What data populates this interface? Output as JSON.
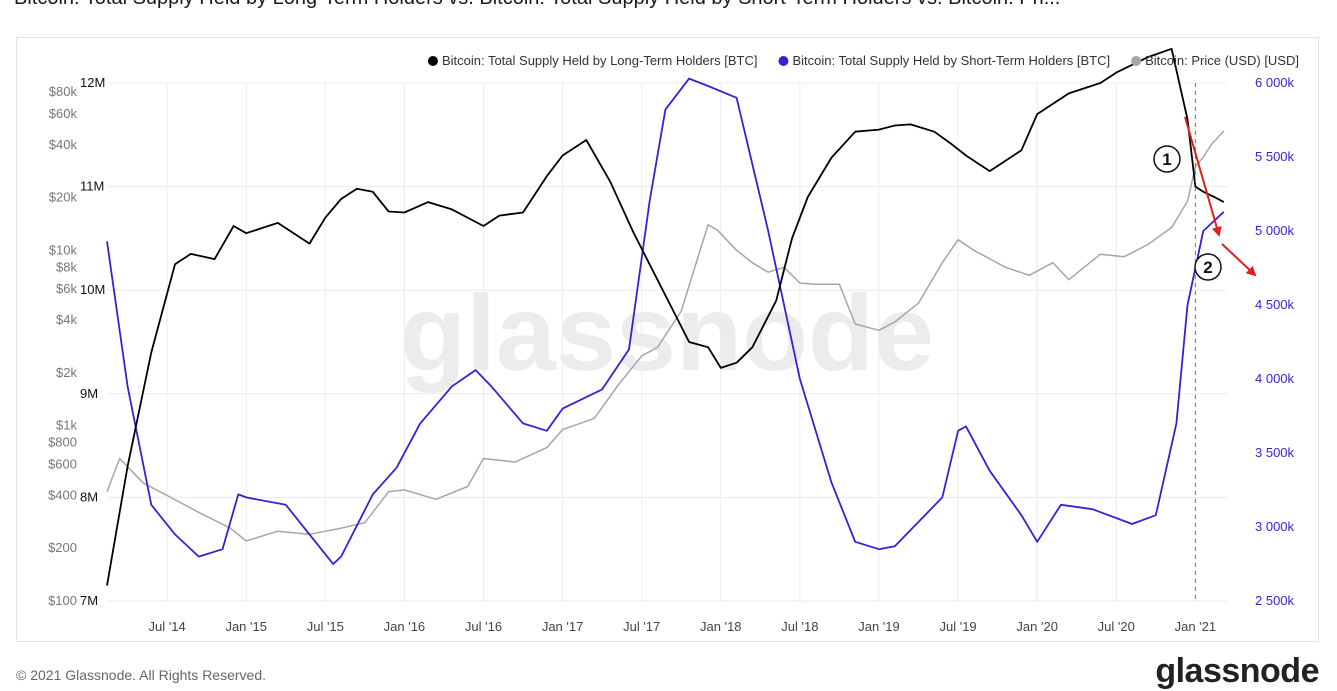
{
  "title": "Bitcoin: Total Supply Held by Long-Term Holders vs. Bitcoin: Total Supply Held by Short-Term Holders vs. Bitcoin: Pri...",
  "footer": {
    "copyright": "© 2021 Glassnode. All Rights Reserved.",
    "logo": "glassnode"
  },
  "watermark": "glassnode",
  "colors": {
    "lth": "#000000",
    "sth": "#3a1fd6",
    "price": "#a6a6a6",
    "arrow": "#e02020",
    "grid": "#ececec"
  },
  "chart_data": {
    "type": "line",
    "x_ticks": [
      "Jul '14",
      "Jan '15",
      "Jul '15",
      "Jan '16",
      "Jul '16",
      "Jan '17",
      "Jul '17",
      "Jan '18",
      "Jul '18",
      "Jan '19",
      "Jul '19",
      "Jan '20",
      "Jul '20",
      "Jan '21"
    ],
    "price_axis": {
      "scale": "log",
      "range": [
        100,
        90000
      ],
      "ticks": [
        {
          "v": 80000,
          "label": "$80k"
        },
        {
          "v": 60000,
          "label": "$60k"
        },
        {
          "v": 40000,
          "label": "$40k"
        },
        {
          "v": 20000,
          "label": "$20k"
        },
        {
          "v": 10000,
          "label": "$10k"
        },
        {
          "v": 8000,
          "label": "$8k"
        },
        {
          "v": 6000,
          "label": "$6k"
        },
        {
          "v": 4000,
          "label": "$4k"
        },
        {
          "v": 2000,
          "label": "$2k"
        },
        {
          "v": 1000,
          "label": "$1k"
        },
        {
          "v": 800,
          "label": "$800"
        },
        {
          "v": 600,
          "label": "$600"
        },
        {
          "v": 400,
          "label": "$400"
        },
        {
          "v": 200,
          "label": "$200"
        },
        {
          "v": 100,
          "label": "$100"
        }
      ]
    },
    "lth_axis": {
      "range": [
        7000000,
        12000000
      ],
      "ticks": [
        {
          "v": 12000000,
          "label": "12M"
        },
        {
          "v": 11000000,
          "label": "11M"
        },
        {
          "v": 10000000,
          "label": "10M"
        },
        {
          "v": 9000000,
          "label": "9M"
        },
        {
          "v": 8000000,
          "label": "8M"
        },
        {
          "v": 7000000,
          "label": "7M"
        }
      ]
    },
    "sth_axis": {
      "range": [
        2500000,
        6000000
      ],
      "ticks": [
        {
          "v": 6000000,
          "label": "6 000k"
        },
        {
          "v": 5500000,
          "label": "5 500k"
        },
        {
          "v": 5000000,
          "label": "5 000k"
        },
        {
          "v": 4500000,
          "label": "4 500k"
        },
        {
          "v": 4000000,
          "label": "4 000k"
        },
        {
          "v": 3500000,
          "label": "3 500k"
        },
        {
          "v": 3000000,
          "label": "3 000k"
        },
        {
          "v": 2500000,
          "label": "2 500k"
        }
      ]
    },
    "legend": {
      "placement": "top-right"
    },
    "series": [
      {
        "name": "Bitcoin: Total Supply Held by Long-Term Holders [BTC]",
        "axis": "lth",
        "x": [
          2014.12,
          2014.25,
          2014.4,
          2014.55,
          2014.65,
          2014.8,
          2014.92,
          2015.0,
          2015.2,
          2015.4,
          2015.5,
          2015.6,
          2015.7,
          2015.8,
          2015.9,
          2016.0,
          2016.15,
          2016.3,
          2016.5,
          2016.6,
          2016.75,
          2016.9,
          2017.0,
          2017.15,
          2017.3,
          2017.45,
          2017.55,
          2017.7,
          2017.8,
          2017.92,
          2018.0,
          2018.1,
          2018.2,
          2018.35,
          2018.45,
          2018.55,
          2018.7,
          2018.85,
          2019.0,
          2019.1,
          2019.2,
          2019.35,
          2019.45,
          2019.55,
          2019.7,
          2019.9,
          2020.0,
          2020.2,
          2020.4,
          2020.5,
          2020.7,
          2020.85,
          2020.95,
          2021.0,
          2021.05,
          2021.12,
          2021.18
        ],
        "y": [
          7150000,
          8300000,
          9400000,
          10250000,
          10350000,
          10300000,
          10620000,
          10550000,
          10650000,
          10450000,
          10700000,
          10880000,
          10980000,
          10950000,
          10760000,
          10750000,
          10850000,
          10780000,
          10620000,
          10720000,
          10750000,
          11100000,
          11300000,
          11450000,
          11050000,
          10550000,
          10250000,
          9800000,
          9500000,
          9450000,
          9250000,
          9300000,
          9450000,
          9900000,
          10500000,
          10900000,
          11280000,
          11530000,
          11550000,
          11590000,
          11600000,
          11530000,
          11420000,
          11300000,
          11150000,
          11350000,
          11700000,
          11900000,
          12000000,
          12100000,
          12250000,
          12330000,
          11650000,
          11000000,
          10950000,
          10900000,
          10850000
        ]
      },
      {
        "name": "Bitcoin: Total Supply Held by Short-Term Holders [BTC]",
        "axis": "sth",
        "x": [
          2014.12,
          2014.25,
          2014.4,
          2014.55,
          2014.7,
          2014.85,
          2014.95,
          2015.0,
          2015.25,
          2015.4,
          2015.55,
          2015.6,
          2015.8,
          2015.95,
          2016.1,
          2016.3,
          2016.45,
          2016.55,
          2016.75,
          2016.9,
          2017.0,
          2017.25,
          2017.42,
          2017.55,
          2017.65,
          2017.8,
          2017.92,
          2018.1,
          2018.3,
          2018.5,
          2018.7,
          2018.85,
          2019.0,
          2019.1,
          2019.2,
          2019.4,
          2019.5,
          2019.55,
          2019.7,
          2019.9,
          2020.0,
          2020.15,
          2020.35,
          2020.6,
          2020.75,
          2020.88,
          2020.95,
          2021.05,
          2021.18
        ],
        "y": [
          4930000,
          3950000,
          3150000,
          2950000,
          2800000,
          2850000,
          3220000,
          3200000,
          3150000,
          2950000,
          2750000,
          2800000,
          3220000,
          3400000,
          3700000,
          3950000,
          4060000,
          3950000,
          3700000,
          3650000,
          3800000,
          3930000,
          4200000,
          5200000,
          5820000,
          6030000,
          5980000,
          5900000,
          5000000,
          4000000,
          3300000,
          2900000,
          2850000,
          2870000,
          2980000,
          3200000,
          3650000,
          3680000,
          3380000,
          3080000,
          2900000,
          3150000,
          3120000,
          3020000,
          3080000,
          3700000,
          4500000,
          5000000,
          5130000
        ]
      },
      {
        "name": "Bitcoin: Price (USD) [USD]",
        "axis": "price",
        "x": [
          2014.12,
          2014.2,
          2014.35,
          2014.5,
          2014.7,
          2014.9,
          2015.0,
          2015.2,
          2015.4,
          2015.6,
          2015.75,
          2015.9,
          2016.0,
          2016.2,
          2016.4,
          2016.5,
          2016.7,
          2016.9,
          2017.0,
          2017.2,
          2017.35,
          2017.5,
          2017.6,
          2017.75,
          2017.92,
          2017.98,
          2018.1,
          2018.2,
          2018.3,
          2018.4,
          2018.5,
          2018.6,
          2018.75,
          2018.85,
          2019.0,
          2019.1,
          2019.25,
          2019.4,
          2019.5,
          2019.6,
          2019.8,
          2019.95,
          2020.1,
          2020.2,
          2020.4,
          2020.55,
          2020.7,
          2020.85,
          2020.95,
          2021.0,
          2021.05,
          2021.1,
          2021.18
        ],
        "y": [
          420,
          650,
          470,
          400,
          320,
          260,
          220,
          250,
          240,
          260,
          280,
          420,
          430,
          380,
          450,
          650,
          620,
          750,
          950,
          1100,
          1700,
          2500,
          2800,
          4500,
          14000,
          13000,
          10000,
          8500,
          7500,
          8000,
          6500,
          6400,
          6400,
          3800,
          3500,
          3900,
          5000,
          8500,
          11500,
          10000,
          8000,
          7200,
          8500,
          6800,
          9500,
          9200,
          10800,
          13500,
          19000,
          30000,
          34000,
          40000,
          48000
        ]
      }
    ]
  }
}
